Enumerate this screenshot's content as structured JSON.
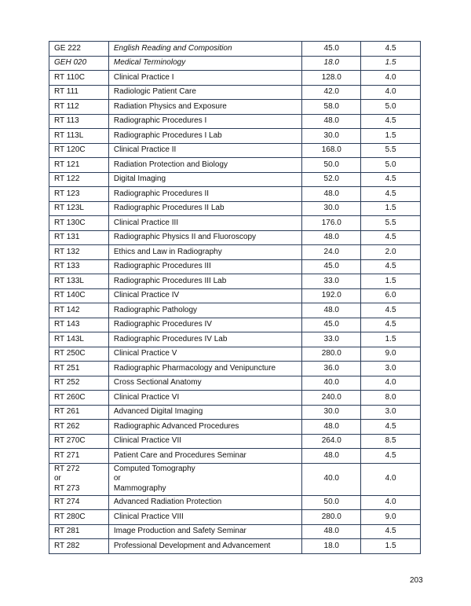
{
  "table": {
    "rows": [
      [
        "GE 222",
        "English Reading and Composition",
        "45.0",
        "4.5"
      ],
      [
        "GEH 020",
        "Medical Terminology",
        "18.0",
        "1.5"
      ],
      [
        "RT 110C",
        "Clinical Practice I",
        "128.0",
        "4.0"
      ],
      [
        "RT 111",
        "Radiologic Patient Care",
        "42.0",
        "4.0"
      ],
      [
        "RT 112",
        "Radiation Physics and Exposure",
        "58.0",
        "5.0"
      ],
      [
        "RT 113",
        "Radiographic Procedures I",
        "48.0",
        "4.5"
      ],
      [
        "RT 113L",
        "Radiographic Procedures I Lab",
        "30.0",
        "1.5"
      ],
      [
        "RT 120C",
        "Clinical Practice II",
        "168.0",
        "5.5"
      ],
      [
        "RT 121",
        "Radiation Protection and Biology",
        "50.0",
        "5.0"
      ],
      [
        "RT 122",
        "Digital Imaging",
        "52.0",
        "4.5"
      ],
      [
        "RT 123",
        "Radiographic Procedures II",
        "48.0",
        "4.5"
      ],
      [
        "RT 123L",
        "Radiographic Procedures II Lab",
        "30.0",
        "1.5"
      ],
      [
        "RT 130C",
        "Clinical Practice III",
        "176.0",
        "5.5"
      ],
      [
        "RT 131",
        "Radiographic Physics II and Fluoroscopy",
        "48.0",
        "4.5"
      ],
      [
        "RT 132",
        "Ethics and Law in Radiography",
        "24.0",
        "2.0"
      ],
      [
        "RT 133",
        "Radiographic Procedures III",
        "45.0",
        "4.5"
      ],
      [
        "RT 133L",
        "Radiographic Procedures III Lab",
        "33.0",
        "1.5"
      ],
      [
        "RT 140C",
        "Clinical Practice IV",
        "192.0",
        "6.0"
      ],
      [
        "RT 142",
        "Radiographic Pathology",
        "48.0",
        "4.5"
      ],
      [
        "RT 143",
        "Radiographic Procedures IV",
        "45.0",
        "4.5"
      ],
      [
        "RT 143L",
        "Radiographic Procedures IV Lab",
        "33.0",
        "1.5"
      ],
      [
        "RT 250C",
        "Clinical Practice V",
        "280.0",
        "9.0"
      ],
      [
        "RT 251",
        "Radiographic Pharmacology and Venipuncture",
        "36.0",
        "3.0"
      ],
      [
        "RT 252",
        "Cross Sectional Anatomy",
        "40.0",
        "4.0"
      ],
      [
        "RT 260C",
        "Clinical Practice VI",
        "240.0",
        "8.0"
      ],
      [
        "RT 261",
        "Advanced Digital Imaging",
        "30.0",
        "3.0"
      ],
      [
        "RT 262",
        "Radiographic Advanced Procedures",
        "48.0",
        "4.5"
      ],
      [
        "RT 270C",
        "Clinical Practice VII",
        "264.0",
        "8.5"
      ],
      [
        "RT 271",
        "Patient Care and Procedures Seminar",
        "48.0",
        "4.5"
      ],
      [
        [
          "RT 272",
          "or",
          "RT 273"
        ],
        [
          "Computed Tomography",
          "or",
          "Mammography"
        ],
        "40.0",
        "4.0"
      ],
      [
        "RT 274",
        "Advanced Radiation Protection",
        "50.0",
        "4.0"
      ],
      [
        "RT 280C",
        "Clinical Practice VIII",
        "280.0",
        "9.0"
      ],
      [
        "RT 281",
        "Image Production and Safety Seminar",
        "48.0",
        "4.5"
      ],
      [
        "RT 282",
        "Professional Development and Advancement",
        "18.0",
        "1.5"
      ]
    ]
  },
  "page_number": "203"
}
